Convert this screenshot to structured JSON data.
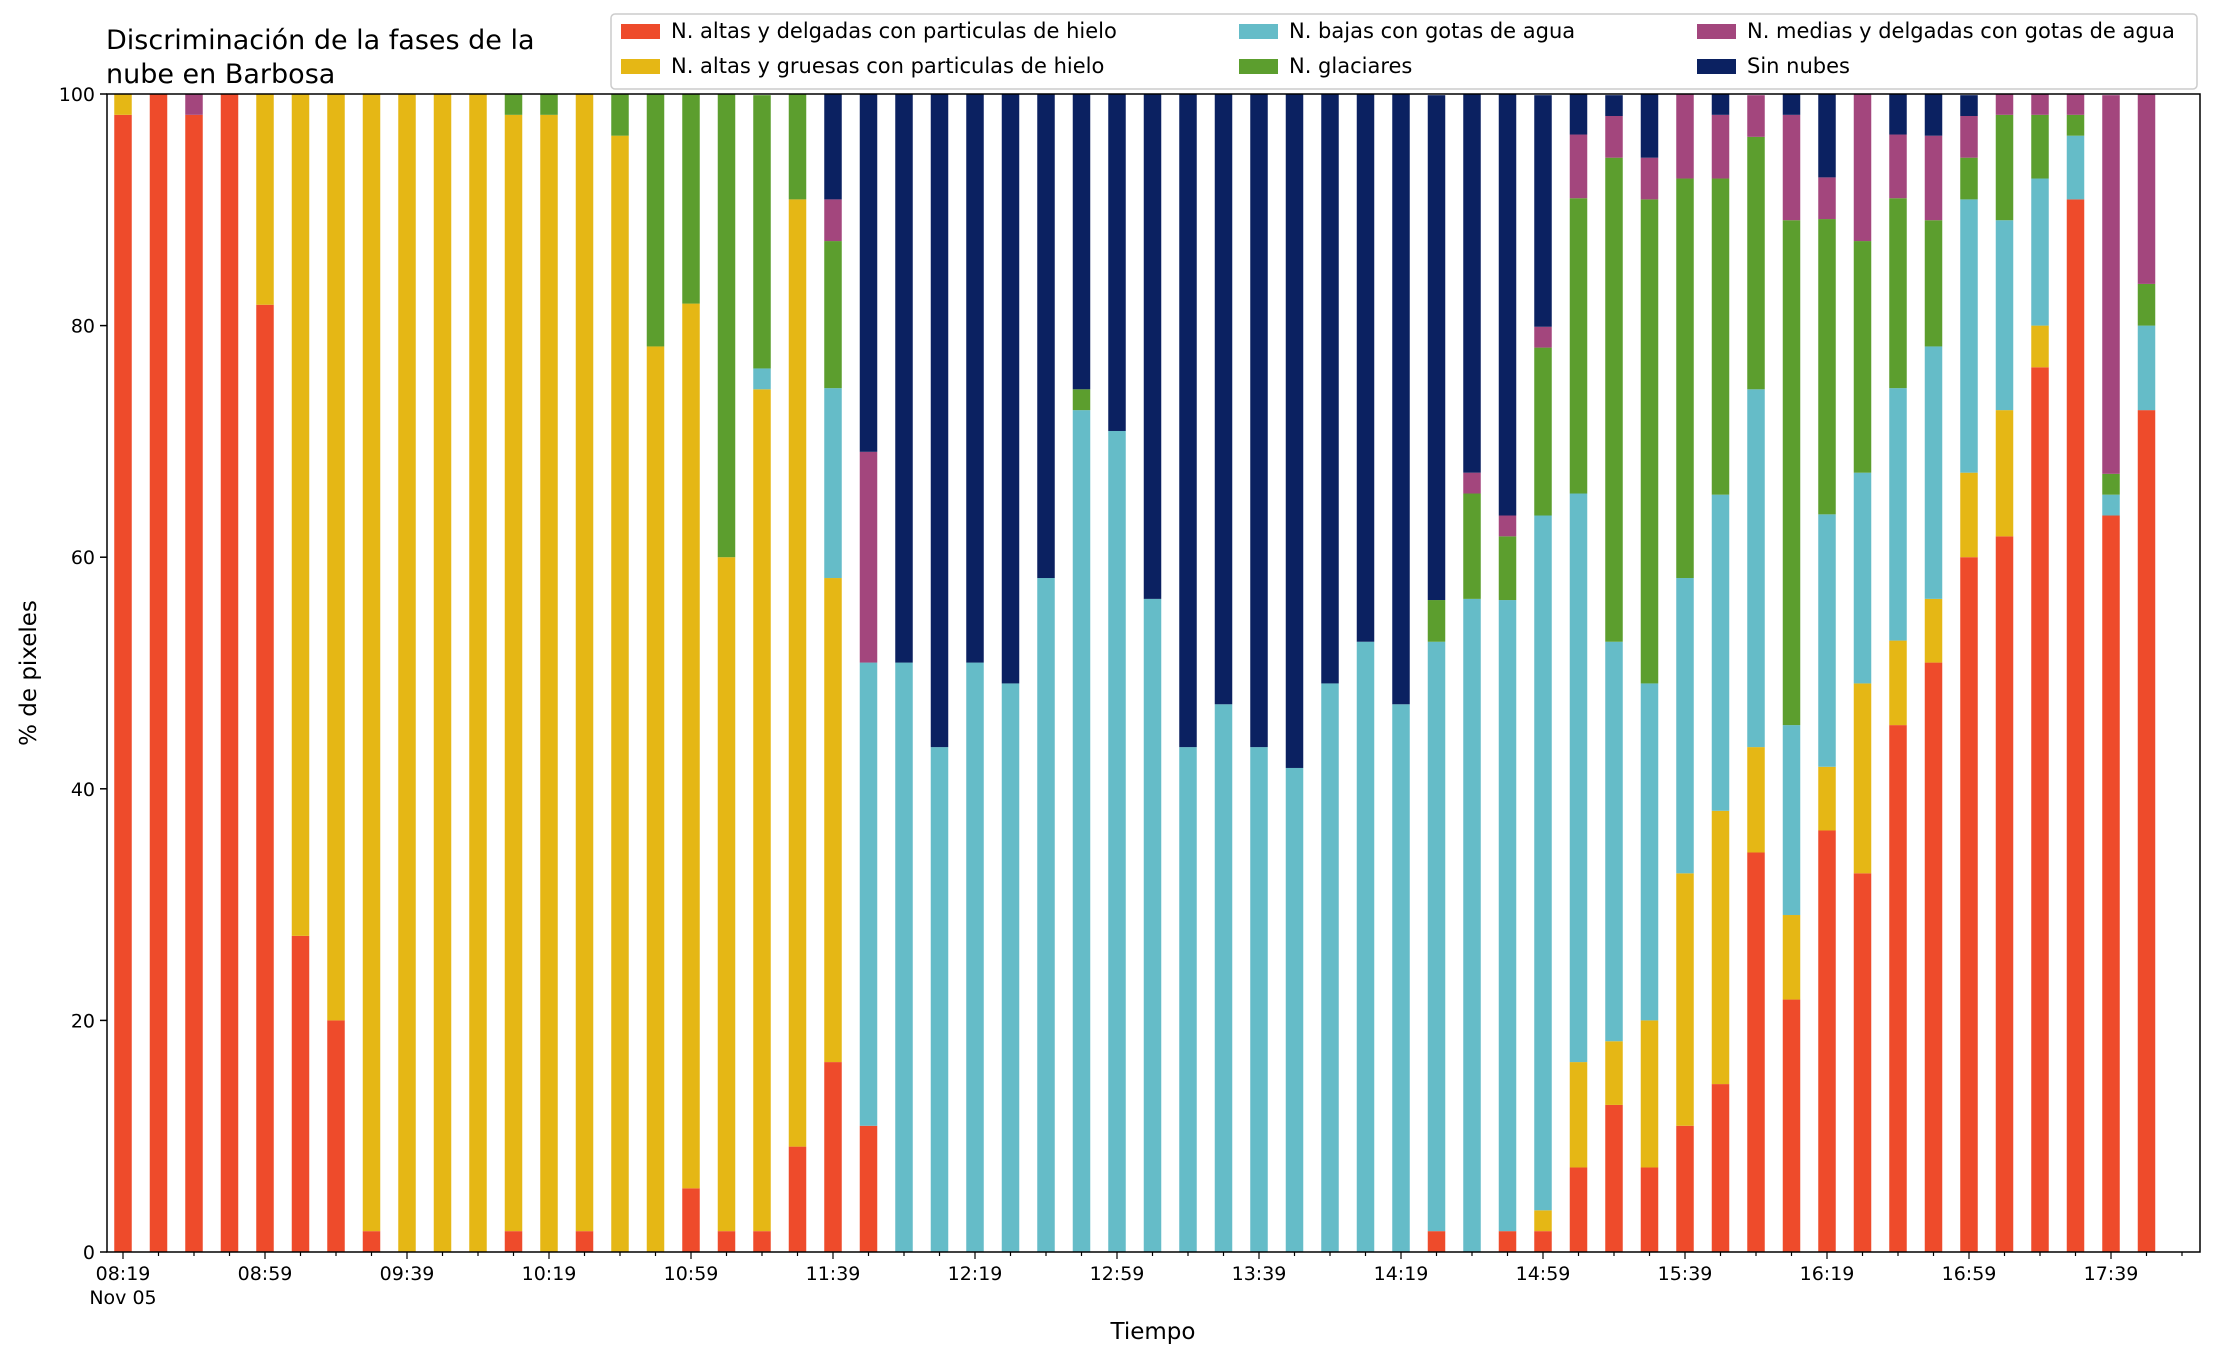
{
  "chart_data": {
    "type": "bar",
    "stacked": true,
    "title": "Discriminación de la fases de la nube en Barbosa",
    "title_lines": [
      "Discriminación de la fases de la",
      "nube en Barbosa"
    ],
    "xlabel": "Tiempo",
    "ylabel": "% de pixeles",
    "ylim": [
      0,
      100
    ],
    "yticks": [
      0,
      20,
      40,
      60,
      80,
      100
    ],
    "legend_position": "top-right",
    "grid": false,
    "x_start": "08:19",
    "interval_minutes": 10,
    "xtick_labels": [
      "08:19",
      "08:59",
      "09:39",
      "10:19",
      "10:59",
      "11:39",
      "12:19",
      "12:59",
      "13:39",
      "14:19",
      "14:59",
      "15:39",
      "16:19",
      "16:59",
      "17:39"
    ],
    "xtick_date": "Nov 05",
    "series": [
      {
        "name": "N. altas y delgadas con particulas de hielo",
        "color": "#ee4b2b",
        "values": [
          98.2,
          100,
          98.2,
          100,
          81.8,
          27.3,
          20,
          1.8,
          0,
          0,
          0,
          1.8,
          0,
          1.8,
          0,
          0,
          5.5,
          1.8,
          1.8,
          9.1,
          16.4,
          10.9,
          0,
          0,
          0,
          0,
          0,
          0,
          0,
          0,
          0,
          0,
          0,
          0,
          0,
          0,
          0,
          1.8,
          0,
          1.8,
          1.8,
          7.3,
          12.7,
          7.3,
          10.9,
          14.5,
          34.5,
          21.8,
          36.4,
          32.7,
          45.5,
          50.9,
          60,
          61.8,
          76.4,
          90.9,
          63.6,
          72.7
        ]
      },
      {
        "name": "N. altas y gruesas con particulas de hielo",
        "color": "#e5b715",
        "values": [
          1.8,
          0,
          0,
          0,
          18.2,
          72.7,
          80,
          98.2,
          100,
          100,
          100,
          96.4,
          98.2,
          98.2,
          96.4,
          78.2,
          76.4,
          58.2,
          72.7,
          81.8,
          41.8,
          0,
          0,
          0,
          0,
          0,
          0,
          0,
          0,
          0,
          0,
          0,
          0,
          0,
          0,
          0,
          0,
          0,
          0,
          0,
          1.8,
          9.1,
          5.5,
          12.7,
          21.8,
          23.6,
          9.1,
          7.3,
          5.5,
          16.4,
          7.3,
          5.5,
          7.3,
          10.9,
          3.6,
          0,
          0,
          0
        ]
      },
      {
        "name": "N. bajas con gotas de agua",
        "color": "#65bcc8",
        "values": [
          0,
          0,
          0,
          0,
          0,
          0,
          0,
          0,
          0,
          0,
          0,
          0,
          0,
          0,
          0,
          0,
          0,
          0,
          1.8,
          0,
          16.4,
          40,
          50.9,
          43.6,
          50.9,
          49.1,
          58.2,
          72.7,
          70.9,
          56.4,
          43.6,
          47.3,
          43.6,
          41.8,
          49.1,
          52.7,
          47.3,
          50.9,
          56.4,
          54.5,
          60,
          49.1,
          34.5,
          29.1,
          25.5,
          27.3,
          30.9,
          16.4,
          21.8,
          18.2,
          21.8,
          21.8,
          23.6,
          16.4,
          12.7,
          5.5,
          1.8,
          7.3
        ]
      },
      {
        "name": "N. glaciares",
        "color": "#5c9e2e",
        "values": [
          0,
          0,
          0,
          0,
          0,
          0,
          0,
          0,
          0,
          0,
          0,
          1.8,
          1.8,
          0,
          3.6,
          21.8,
          18.2,
          40,
          23.6,
          9.1,
          12.7,
          0,
          0,
          0,
          0,
          0,
          0,
          1.8,
          0,
          0,
          0,
          0,
          0,
          0,
          0,
          0,
          0,
          3.6,
          9.1,
          5.5,
          14.5,
          25.5,
          41.8,
          41.8,
          34.5,
          27.3,
          21.8,
          43.6,
          25.5,
          20,
          16.4,
          10.9,
          3.6,
          9.1,
          5.5,
          1.8,
          1.8,
          3.6
        ]
      },
      {
        "name": "N. medias y delgadas con gotas de agua",
        "color": "#a3467d",
        "values": [
          0,
          0,
          1.8,
          0,
          0,
          0,
          0,
          0,
          0,
          0,
          0,
          0,
          0,
          0,
          0,
          0,
          0,
          0,
          0,
          0,
          3.6,
          18.2,
          0,
          0,
          0,
          0,
          0,
          0,
          0,
          0,
          0,
          0,
          0,
          0,
          0,
          0,
          0,
          0,
          1.8,
          1.8,
          1.8,
          5.5,
          3.6,
          3.6,
          7.3,
          5.5,
          3.6,
          9.1,
          3.6,
          12.7,
          5.5,
          7.3,
          3.6,
          1.8,
          1.8,
          1.8,
          32.7,
          16.4
        ]
      },
      {
        "name": "Sin nubes",
        "color": "#0b2161",
        "values": [
          0,
          0,
          0,
          0,
          0,
          0,
          0,
          0,
          0,
          0,
          0,
          0,
          0,
          0,
          0,
          0,
          0,
          0,
          0,
          0,
          9.1,
          30.9,
          49.1,
          56.4,
          49.1,
          50.9,
          41.8,
          25.5,
          29.1,
          43.6,
          56.4,
          52.7,
          56.4,
          58.2,
          50.9,
          47.3,
          52.7,
          43.6,
          32.7,
          36.4,
          20,
          3.6,
          1.8,
          5.5,
          0,
          1.8,
          0,
          1.8,
          7.3,
          0,
          3.6,
          3.6,
          1.8,
          0,
          0,
          0,
          0,
          0
        ]
      }
    ]
  }
}
